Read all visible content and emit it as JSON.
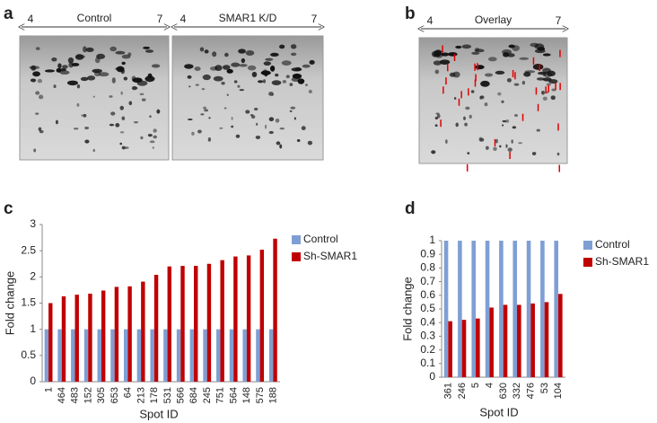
{
  "figure": {
    "panel_labels": [
      "a",
      "b",
      "c",
      "d"
    ],
    "gels": [
      {
        "label": "Control",
        "ph_start": 4,
        "ph_end": 7
      },
      {
        "label": "SMAR1 K/D",
        "ph_start": 4,
        "ph_end": 7
      },
      {
        "label": "Overlay",
        "ph_start": 4,
        "ph_end": 7
      }
    ]
  },
  "chart_data": [
    {
      "type": "bar",
      "x_label": "Spot ID",
      "y_label": "Fold change",
      "categories": [
        "1",
        "464",
        "483",
        "152",
        "305",
        "653",
        "64",
        "213",
        "178",
        "531",
        "566",
        "684",
        "245",
        "751",
        "564",
        "148",
        "575",
        "188"
      ],
      "series": [
        {
          "name": "Control",
          "color": "#7f9fd4",
          "values": [
            1,
            1,
            1,
            1,
            1,
            1,
            1,
            1,
            1,
            1,
            1,
            1,
            1,
            1,
            1,
            1,
            1,
            1
          ]
        },
        {
          "name": "Sh-SMAR1",
          "color": "#c00000",
          "values": [
            1.5,
            1.63,
            1.66,
            1.68,
            1.74,
            1.81,
            1.82,
            1.91,
            2.04,
            2.2,
            2.21,
            2.21,
            2.25,
            2.32,
            2.39,
            2.41,
            2.52,
            2.73
          ]
        }
      ],
      "ylim": [
        0,
        3
      ],
      "yticks": [
        0,
        0.5,
        1,
        1.5,
        2,
        2.5,
        3
      ],
      "legend": "right"
    },
    {
      "type": "bar",
      "x_label": "Spot ID",
      "y_label": "Fold change",
      "categories": [
        "361",
        "246",
        "5",
        "4",
        "630",
        "332",
        "476",
        "53",
        "104"
      ],
      "series": [
        {
          "name": "Control",
          "color": "#7f9fd4",
          "values": [
            1,
            1,
            1,
            1,
            1,
            1,
            1,
            1,
            1
          ]
        },
        {
          "name": "Sh-SMAR1",
          "color": "#c00000",
          "values": [
            0.41,
            0.42,
            0.43,
            0.51,
            0.53,
            0.53,
            0.54,
            0.55,
            0.61
          ]
        }
      ],
      "ylim": [
        0,
        1
      ],
      "yticks": [
        0,
        0.1,
        0.2,
        0.3,
        0.4,
        0.5,
        0.6,
        0.7,
        0.8,
        0.9,
        1
      ],
      "legend": "right"
    }
  ]
}
